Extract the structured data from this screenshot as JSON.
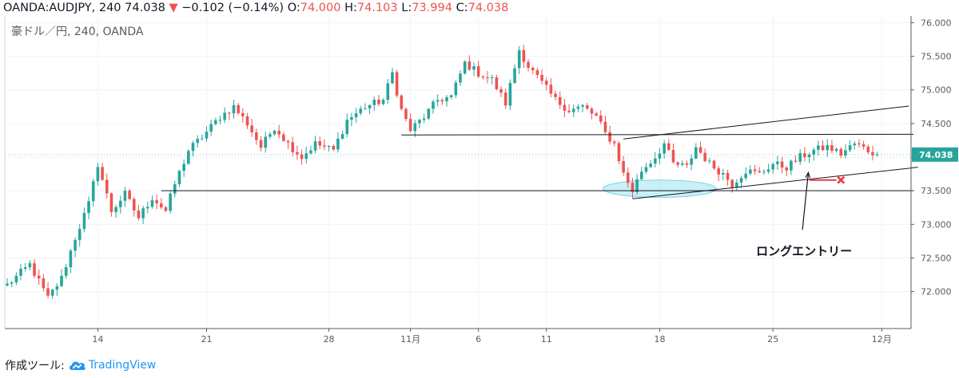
{
  "header": {
    "symbol": "OANDA:AUDJPY, 240",
    "last": "74.038",
    "arrow": "▼",
    "change": "−0.102 (−0.14%)",
    "o_label": "O:",
    "o_value": "74.000",
    "h_label": "H:",
    "h_value": "74.103",
    "l_label": "L:",
    "l_value": "73.994",
    "c_label": "C:",
    "c_value": "74.038"
  },
  "legend": "豪ドル／円, 240, OANDA",
  "footer": {
    "prefix": "作成ツール:",
    "brand": "TradingView"
  },
  "colors": {
    "up": "#26a69a",
    "down": "#ef5350",
    "accent": "#2196f3",
    "ellipse": "#9ee3f0"
  },
  "chart_data": {
    "type": "candlestick",
    "symbol": "AUDJPY",
    "timeframe": "240",
    "ylim": [
      71.45,
      76.1
    ],
    "yticks": [
      72.0,
      72.5,
      73.0,
      73.5,
      74.0,
      74.5,
      75.0,
      75.5,
      76.0
    ],
    "ytick_labels": [
      "72.000",
      "72.500",
      "73.000",
      "73.500",
      "74.000",
      "74.500",
      "75.000",
      "75.500",
      "76.000"
    ],
    "xticks": [
      {
        "label": "14",
        "index": 20
      },
      {
        "label": "21",
        "index": 44
      },
      {
        "label": "28",
        "index": 71
      },
      {
        "label": "11月",
        "index": 89
      },
      {
        "label": "6",
        "index": 104
      },
      {
        "label": "11",
        "index": 119
      },
      {
        "label": "18",
        "index": 144
      },
      {
        "label": "25",
        "index": 169
      },
      {
        "label": "12月",
        "index": 193
      }
    ],
    "last_price": 74.038,
    "last_price_label": "74.038",
    "anchors": [
      [
        0,
        72.1
      ],
      [
        5,
        72.4
      ],
      [
        9,
        71.9
      ],
      [
        12,
        72.2
      ],
      [
        15,
        72.8
      ],
      [
        18,
        73.3
      ],
      [
        20,
        73.9
      ],
      [
        23,
        73.2
      ],
      [
        26,
        73.45
      ],
      [
        29,
        73.1
      ],
      [
        32,
        73.4
      ],
      [
        35,
        73.2
      ],
      [
        37,
        73.6
      ],
      [
        40,
        74.1
      ],
      [
        43,
        74.3
      ],
      [
        47,
        74.6
      ],
      [
        50,
        74.75
      ],
      [
        53,
        74.5
      ],
      [
        56,
        74.15
      ],
      [
        59,
        74.45
      ],
      [
        62,
        74.2
      ],
      [
        65,
        74.0
      ],
      [
        68,
        74.2
      ],
      [
        72,
        74.1
      ],
      [
        75,
        74.55
      ],
      [
        79,
        74.75
      ],
      [
        83,
        74.85
      ],
      [
        85,
        75.25
      ],
      [
        87,
        74.7
      ],
      [
        89,
        74.4
      ],
      [
        92,
        74.6
      ],
      [
        95,
        74.85
      ],
      [
        98,
        74.9
      ],
      [
        101,
        75.4
      ],
      [
        104,
        75.25
      ],
      [
        107,
        75.15
      ],
      [
        110,
        74.8
      ],
      [
        113,
        75.6
      ],
      [
        115,
        75.35
      ],
      [
        118,
        75.1
      ],
      [
        121,
        74.85
      ],
      [
        124,
        74.7
      ],
      [
        127,
        74.75
      ],
      [
        130,
        74.6
      ],
      [
        132,
        74.35
      ],
      [
        134,
        74.2
      ],
      [
        136,
        73.75
      ],
      [
        138,
        73.5
      ],
      [
        140,
        73.8
      ],
      [
        143,
        74.0
      ],
      [
        145,
        74.2
      ],
      [
        147,
        73.9
      ],
      [
        150,
        73.85
      ],
      [
        152,
        74.15
      ],
      [
        155,
        73.9
      ],
      [
        158,
        73.75
      ],
      [
        160,
        73.6
      ],
      [
        163,
        73.8
      ],
      [
        166,
        73.75
      ],
      [
        169,
        73.9
      ],
      [
        172,
        73.85
      ],
      [
        175,
        74.0
      ],
      [
        178,
        74.1
      ],
      [
        181,
        74.15
      ],
      [
        184,
        74.05
      ],
      [
        187,
        74.2
      ],
      [
        190,
        74.1
      ],
      [
        192,
        74.04
      ]
    ],
    "trendlines": [
      {
        "from": [
          34,
          73.5
        ],
        "to": [
          200,
          73.5
        ]
      },
      {
        "from": [
          87,
          74.33
        ],
        "to": [
          200,
          74.34
        ]
      },
      {
        "from": [
          136,
          74.27
        ],
        "to": [
          199,
          74.76
        ]
      },
      {
        "from": [
          138,
          73.38
        ],
        "to": [
          201,
          73.85
        ]
      }
    ],
    "highlight_ellipse": {
      "center": [
        144,
        73.53
      ],
      "rx_bars": 12.5,
      "ry_price": 0.13
    },
    "marker_line": {
      "from": [
        177,
        73.66
      ],
      "to": [
        183,
        73.66
      ]
    },
    "marker_x": [
      184,
      73.66
    ],
    "annotation": {
      "text": "ロングエントリー",
      "arrow_from": [
        175.5,
        72.92
      ],
      "arrow_to": [
        176.8,
        73.77
      ]
    }
  }
}
